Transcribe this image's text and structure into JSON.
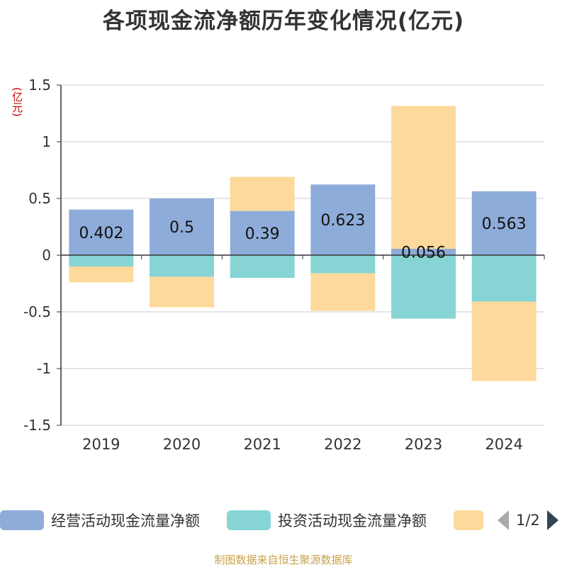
{
  "title": "各项现金流净额历年变化情况(亿元)",
  "unit_label": "(亿元)",
  "source": "制图数据来自恒生聚源数据库",
  "legend": {
    "items": [
      {
        "label": "经营活动现金流量净额",
        "color": "#8eacd9"
      },
      {
        "label": "投资活动现金流量净额",
        "color": "#86d4d4"
      },
      {
        "label": "",
        "color": "#fdd99b"
      }
    ],
    "page_text": "1/2"
  },
  "chart_data": {
    "type": "bar",
    "stacked": true,
    "categories": [
      "2019",
      "2020",
      "2021",
      "2022",
      "2023",
      "2024"
    ],
    "ylim": [
      -1.5,
      1.5
    ],
    "yticks": [
      -1.5,
      -1,
      -0.5,
      0,
      0.5,
      1,
      1.5
    ],
    "ytick_labels": [
      "-1.5",
      "-1",
      "-0.5",
      "0",
      "0.5",
      "1",
      "1.5"
    ],
    "grid": true,
    "legend_position": "bottom",
    "series": [
      {
        "name": "经营活动现金流量净额",
        "color": "#8eacd9",
        "values": [
          0.402,
          0.5,
          0.39,
          0.623,
          0.056,
          0.563
        ],
        "labels": [
          "0.402",
          "0.5",
          "0.39",
          "0.623",
          "0.056",
          "0.563"
        ]
      },
      {
        "color": "#86d4d4",
        "values": [
          -0.1,
          -0.19,
          -0.2,
          -0.16,
          -0.56,
          -0.41
        ]
      },
      {
        "color": "#fdd99b",
        "values": [
          -0.14,
          -0.27,
          0.3,
          -0.33,
          1.26,
          -0.7
        ]
      }
    ]
  }
}
